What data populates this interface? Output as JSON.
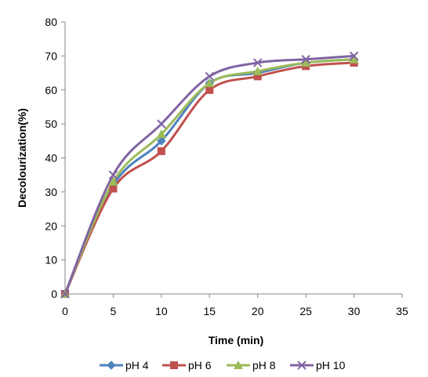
{
  "chart_data": {
    "type": "line",
    "title": "",
    "xlabel": "Time (min)",
    "ylabel": "Decolourization(%)",
    "xlim": [
      0,
      35
    ],
    "ylim": [
      0,
      80
    ],
    "xticks": [
      "0",
      "5",
      "10",
      "15",
      "20",
      "25",
      "30",
      "35"
    ],
    "yticks": [
      "0",
      "10",
      "20",
      "30",
      "40",
      "50",
      "60",
      "70",
      "80"
    ],
    "grid": false,
    "smooth": true,
    "legend_position": "bottom",
    "x": [
      0,
      5,
      10,
      15,
      20,
      25,
      30
    ],
    "series": [
      {
        "name": "pH 4",
        "color": "#4F81BD",
        "marker": "diamond",
        "values": [
          0,
          32,
          45,
          62,
          65,
          68,
          69
        ]
      },
      {
        "name": "pH 6",
        "color": "#C0504D",
        "marker": "square",
        "values": [
          0,
          31,
          42,
          60,
          64,
          67,
          68
        ]
      },
      {
        "name": "pH 8",
        "color": "#9BBB59",
        "marker": "triangle",
        "values": [
          0,
          33,
          47,
          62,
          65.5,
          68,
          69
        ]
      },
      {
        "name": "pH 10",
        "color": "#8064A2",
        "marker": "x",
        "values": [
          0,
          35,
          50,
          64,
          68,
          69,
          70
        ]
      }
    ]
  }
}
